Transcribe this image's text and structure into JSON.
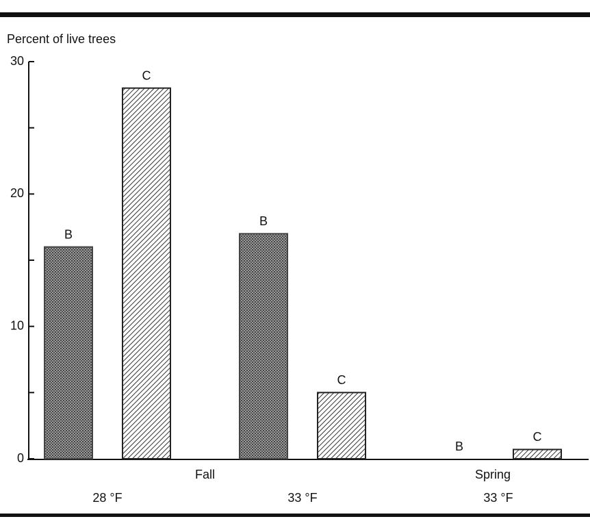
{
  "chart_data": {
    "type": "bar",
    "y_axis_label": "Percent of live trees",
    "categories": [
      "28 °F",
      "33 °F",
      "33 °F"
    ],
    "x_groups": [
      {
        "label": "Fall",
        "count": 2
      },
      {
        "label": "Spring",
        "count": 1
      }
    ],
    "series": [
      {
        "name": "B",
        "pattern": "stipple",
        "color": "#444444",
        "values": [
          16,
          17,
          0
        ]
      },
      {
        "name": "C",
        "pattern": "hatch",
        "color": "#222222",
        "values": [
          28,
          5,
          0.7
        ]
      }
    ],
    "ylim": [
      0,
      30
    ],
    "yticks": [
      0,
      10,
      20,
      30
    ],
    "yminor_ticks": [
      5,
      15,
      25
    ]
  }
}
